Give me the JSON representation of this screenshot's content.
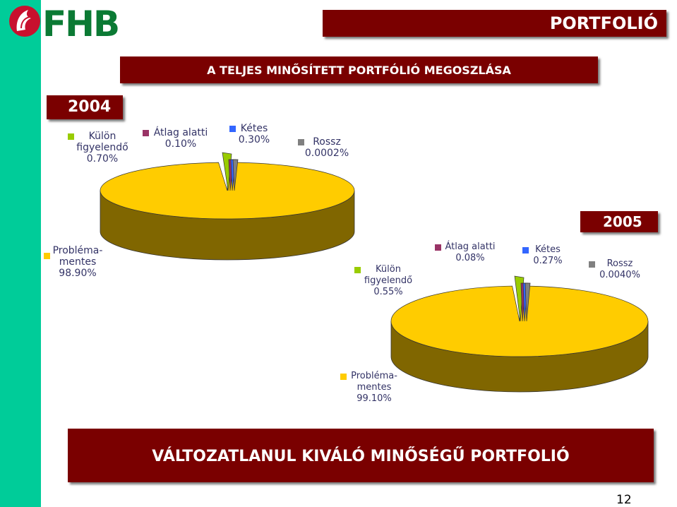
{
  "logo": {
    "text": "FHB"
  },
  "header": {
    "section": "PORTFOLIÓ"
  },
  "title": "A TELJES MINŐSÍTETT PORTFÓLIÓ MEGOSZLÁSA",
  "footer": {
    "headline": "VÁLTOZATLANUL KIVÁLÓ MINŐSÉGŰ PORTFOLIÓ",
    "page": "12"
  },
  "colors": {
    "problemamentes": "#ffcc00",
    "kulon": "#99cc00",
    "atlag": "#993366",
    "ketes": "#3366ff",
    "rossz": "#808080",
    "banner": "#7a0000",
    "stripe": "#00cc99"
  },
  "chart_data": [
    {
      "type": "pie",
      "title": "2004",
      "labels": [
        {
          "category": "Probléma-mentes",
          "text": [
            "Probléma-",
            "mentes",
            "98.90%"
          ]
        },
        {
          "category": "Külön figyelendő",
          "text": [
            "Külön",
            "figyelendő",
            "0.70%"
          ]
        },
        {
          "category": "Átlag alatti",
          "text": [
            "Átlag alatti",
            "0.10%"
          ]
        },
        {
          "category": "Kétes",
          "text": [
            "Kétes",
            "0.30%"
          ]
        },
        {
          "category": "Rossz",
          "text": [
            "Rossz",
            "0.0002%"
          ]
        }
      ],
      "categories": [
        "Probléma-mentes",
        "Külön figyelendő",
        "Átlag alatti",
        "Kétes",
        "Rossz"
      ],
      "values": [
        98.9,
        0.7,
        0.1,
        0.3,
        0.0002
      ]
    },
    {
      "type": "pie",
      "title": "2005",
      "labels": [
        {
          "category": "Probléma-mentes",
          "text": [
            "Probléma-",
            "mentes",
            "99.10%"
          ]
        },
        {
          "category": "Külön figyelendő",
          "text": [
            "Külön",
            "figyelendő",
            "0.55%"
          ]
        },
        {
          "category": "Átlag alatti",
          "text": [
            "Átlag alatti",
            "0.08%"
          ]
        },
        {
          "category": "Kétes",
          "text": [
            "Kétes",
            "0.27%"
          ]
        },
        {
          "category": "Rossz",
          "text": [
            "Rossz",
            "0.0040%"
          ]
        }
      ],
      "categories": [
        "Probléma-mentes",
        "Külön figyelendő",
        "Átlag alatti",
        "Kétes",
        "Rossz"
      ],
      "values": [
        99.1,
        0.55,
        0.08,
        0.27,
        0.004
      ]
    }
  ]
}
